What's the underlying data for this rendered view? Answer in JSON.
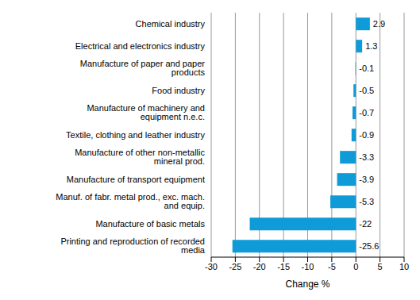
{
  "chart_data": {
    "type": "bar",
    "orientation": "horizontal",
    "x_label": "Change %",
    "categories": [
      "Chemical industry",
      "Electrical and electronics industry",
      "Manufacture of paper and paper products",
      "Food industry",
      "Manufacture of machinery and equipment n.e.c.",
      "Textile, clothing and leather industry",
      "Manufacture of other non-metallic mineral prod.",
      "Manufacture of transport equipment",
      "Manuf. of fabr. metal prod., exc. mach. and equip.",
      "Manufacture of basic metals",
      "Printing and reproduction of recorded media"
    ],
    "values": [
      2.9,
      1.3,
      -0.1,
      -0.5,
      -0.7,
      -0.9,
      -3.3,
      -3.9,
      -5.3,
      -22.0,
      -25.6
    ],
    "color": "#0e9bd7",
    "xlim": [
      -30,
      10
    ],
    "xticks": [
      -30,
      -25,
      -20,
      -15,
      -10,
      -5,
      0,
      5,
      10
    ],
    "grid": true,
    "data_labels": true
  }
}
